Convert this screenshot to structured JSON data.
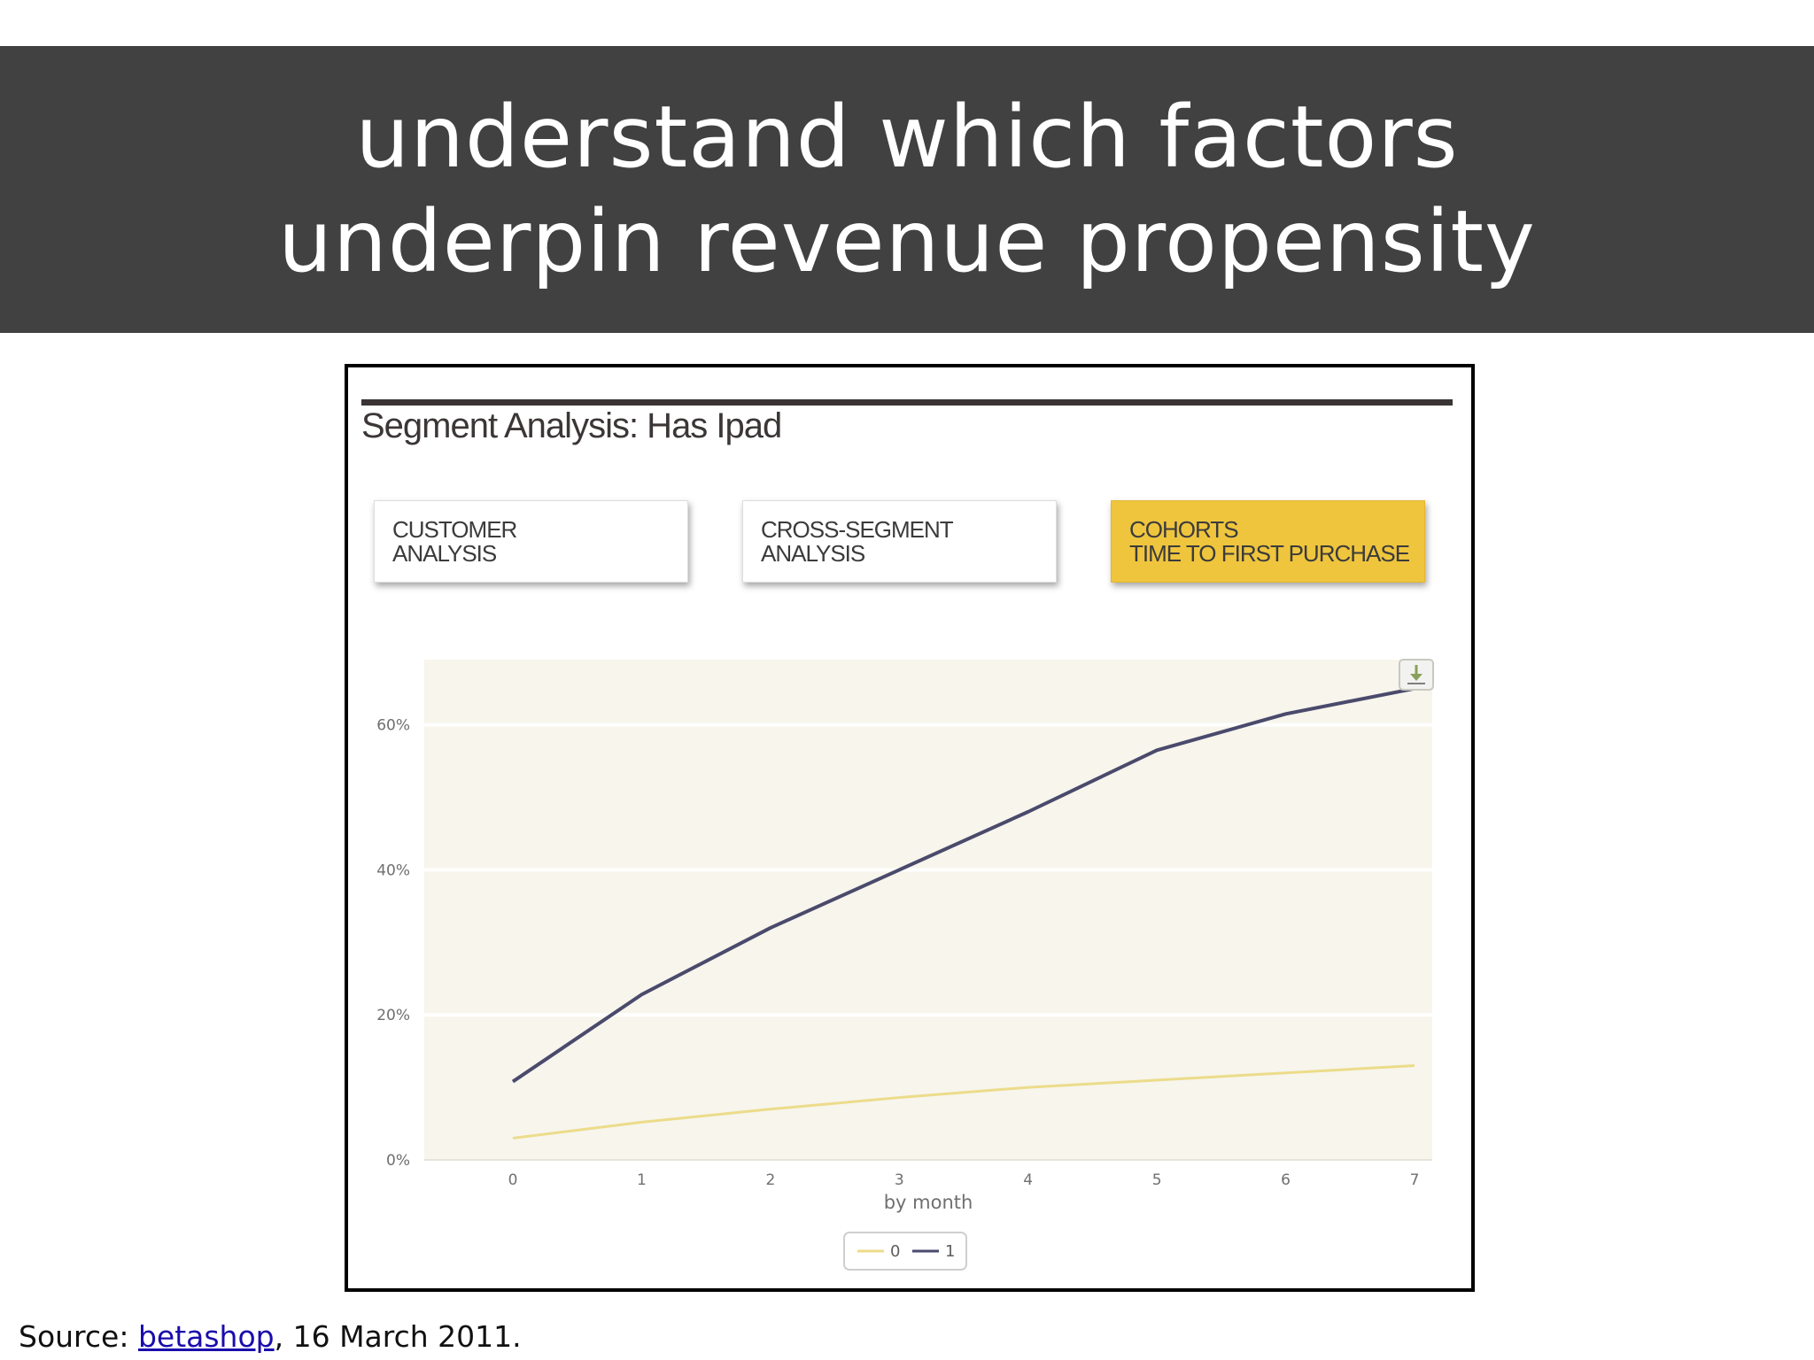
{
  "slide": {
    "title_line1": "understand which factors",
    "title_line2": "underpin revenue propensity",
    "source_prefix": "Source: ",
    "source_link": "betashop",
    "source_suffix": ", 16 March 2011."
  },
  "panel": {
    "title": "Segment Analysis: Has Ipad",
    "tabs": [
      {
        "line1": "CUSTOMER",
        "line2": "ANALYSIS",
        "active": false
      },
      {
        "line1": "CROSS-SEGMENT",
        "line2": "ANALYSIS",
        "active": false
      },
      {
        "line1": "COHORTS",
        "line2": "TIME TO FIRST PURCHASE",
        "active": true
      }
    ],
    "download_icon": "download-icon"
  },
  "chart_data": {
    "type": "line",
    "title": "",
    "xlabel": "by month",
    "ylabel": "",
    "x": [
      0,
      1,
      2,
      3,
      4,
      5,
      6,
      7
    ],
    "x_tick_labels": [
      "0",
      "1",
      "2",
      "3",
      "4",
      "5",
      "6",
      "7"
    ],
    "y_tick_labels": [
      "0%",
      "20%",
      "40%",
      "60%"
    ],
    "y_ticks": [
      0,
      20,
      40,
      60
    ],
    "ylim": [
      0,
      69
    ],
    "grid": true,
    "legend_position": "bottom-center",
    "series": [
      {
        "name": "0",
        "color": "#ecdc8a",
        "values": [
          3,
          5.2,
          7,
          8.6,
          10,
          11,
          12,
          13
        ]
      },
      {
        "name": "1",
        "color": "#4a4a6c",
        "values": [
          10.8,
          22.8,
          32,
          40,
          48,
          56.5,
          61.5,
          65
        ]
      }
    ]
  }
}
